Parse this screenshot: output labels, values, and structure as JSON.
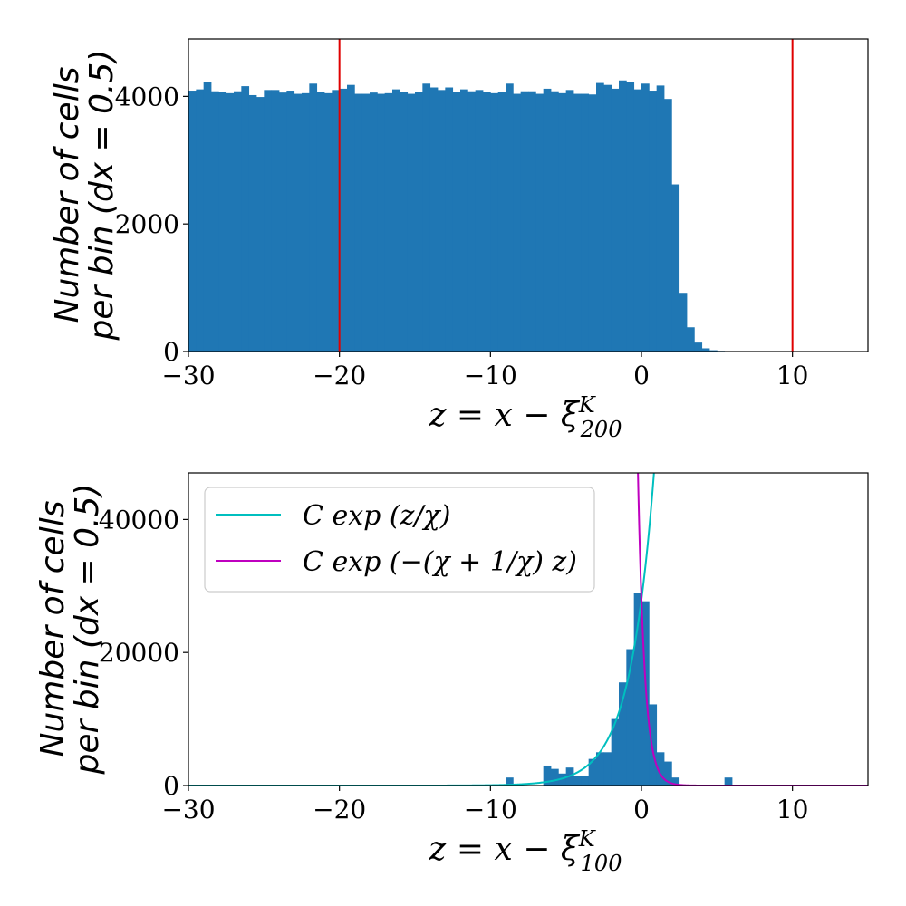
{
  "chart_data": [
    {
      "type": "bar",
      "xlabel": "z = x − ξ^K_200",
      "ylabel_line1": "Number of cells",
      "ylabel_line2": "per bin (dx = 0.5)",
      "xlim": [
        -30,
        15
      ],
      "ylim": [
        0,
        4900
      ],
      "bin_width": 0.5,
      "xticks": [
        -30,
        -20,
        -10,
        0,
        10
      ],
      "yticks": [
        0,
        2000,
        4000
      ],
      "bar_color": "#1f77b4",
      "bins_start": -30,
      "values": [
        4090,
        4110,
        4220,
        4080,
        4070,
        4050,
        4080,
        4160,
        4020,
        3990,
        4100,
        4100,
        4060,
        4090,
        4040,
        4050,
        4200,
        4070,
        4050,
        4100,
        4120,
        4180,
        4040,
        4040,
        4060,
        4040,
        4050,
        4110,
        4070,
        4040,
        4070,
        4200,
        4140,
        4100,
        4140,
        4070,
        4110,
        4080,
        4100,
        4070,
        4050,
        4070,
        4200,
        4040,
        4080,
        4080,
        4040,
        4120,
        4080,
        4050,
        4100,
        4040,
        4040,
        4030,
        4210,
        4180,
        4120,
        4250,
        4230,
        4110,
        4200,
        4090,
        4170,
        3960,
        2620,
        920,
        380,
        140,
        50,
        20,
        10,
        0,
        0,
        0,
        0,
        0,
        0,
        0,
        0,
        0,
        0,
        0,
        0,
        0,
        0,
        0,
        0,
        0,
        0,
        0
      ],
      "vlines": [
        -20,
        10
      ],
      "vline_color": "#e00000"
    },
    {
      "type": "bar",
      "xlabel": "z = x − ξ^K_100",
      "ylabel_line1": "Number of cells",
      "ylabel_line2": "per bin (dx = 0.5)",
      "xlim": [
        -30,
        15
      ],
      "ylim": [
        0,
        47000
      ],
      "bin_width": 0.5,
      "xticks": [
        -30,
        -20,
        -10,
        0,
        10
      ],
      "yticks": [
        0,
        20000,
        40000
      ],
      "bar_color": "#1f77b4",
      "bins": [
        {
          "x": -9.0,
          "v": 1200
        },
        {
          "x": -6.5,
          "v": 3000
        },
        {
          "x": -6.0,
          "v": 2500
        },
        {
          "x": -5.5,
          "v": 1800
        },
        {
          "x": -5.0,
          "v": 2700
        },
        {
          "x": -4.5,
          "v": 1500
        },
        {
          "x": -4.0,
          "v": 1500
        },
        {
          "x": -3.5,
          "v": 4000
        },
        {
          "x": -3.0,
          "v": 5000
        },
        {
          "x": -2.5,
          "v": 5000
        },
        {
          "x": -2.0,
          "v": 10000
        },
        {
          "x": -1.5,
          "v": 15500
        },
        {
          "x": -1.0,
          "v": 20500
        },
        {
          "x": -0.5,
          "v": 29000
        },
        {
          "x": 0.0,
          "v": 27700
        },
        {
          "x": 0.5,
          "v": 12200
        },
        {
          "x": 1.0,
          "v": 5000
        },
        {
          "x": 1.5,
          "v": 3600
        },
        {
          "x": 2.0,
          "v": 1200
        },
        {
          "x": 5.5,
          "v": 1200
        }
      ],
      "curves": [
        {
          "name": "C exp (z/χ)",
          "color": "#00bfbf",
          "form": "exp(z/chi)",
          "C": 28000,
          "chi": 1.6
        },
        {
          "name": "C exp (−(χ + 1/χ) z)",
          "color": "#bf00bf",
          "form": "exp(-(chi+1/chi)z)",
          "C": 28000,
          "chi": 1.6
        }
      ],
      "legend_position": "upper-left"
    }
  ]
}
